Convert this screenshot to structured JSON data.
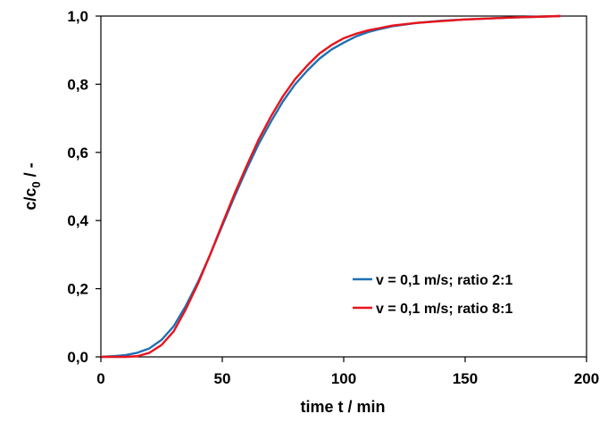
{
  "chart_data": {
    "type": "line",
    "xlabel": "time t / min",
    "ylabel": "c/c",
    "ylabel_subscript": "0",
    "ylabel_suffix": " / -",
    "xlim": [
      0,
      200
    ],
    "ylim": [
      0,
      1.0
    ],
    "x_ticks": [
      0,
      50,
      100,
      150,
      200
    ],
    "x_tick_labels": [
      "0",
      "50",
      "100",
      "150",
      "200"
    ],
    "y_ticks": [
      0,
      0.2,
      0.4,
      0.6,
      0.8,
      1.0
    ],
    "y_tick_labels": [
      "0,0",
      "0,2",
      "0,4",
      "0,6",
      "0,8",
      "1,0"
    ],
    "grid": false,
    "legend_position": "lower-right",
    "series": [
      {
        "name": "v = 0,1 m/s; ratio 2:1",
        "color": "#1f6fb5",
        "x": [
          0,
          5,
          10,
          15,
          20,
          25,
          30,
          35,
          40,
          45,
          50,
          55,
          60,
          65,
          70,
          75,
          80,
          85,
          90,
          95,
          100,
          105,
          110,
          115,
          120,
          130,
          140,
          150,
          160,
          170,
          180,
          189
        ],
        "y": [
          0.0,
          0.002,
          0.005,
          0.012,
          0.025,
          0.05,
          0.09,
          0.15,
          0.22,
          0.3,
          0.385,
          0.47,
          0.55,
          0.625,
          0.69,
          0.75,
          0.8,
          0.84,
          0.875,
          0.902,
          0.922,
          0.94,
          0.953,
          0.962,
          0.97,
          0.98,
          0.986,
          0.99,
          0.993,
          0.996,
          0.998,
          1.0
        ]
      },
      {
        "name": "v = 0,1 m/s; ratio 8:1",
        "color": "#e8141b",
        "x": [
          0,
          5,
          10,
          15,
          20,
          25,
          30,
          35,
          40,
          45,
          50,
          55,
          60,
          65,
          70,
          75,
          80,
          85,
          90,
          95,
          100,
          105,
          110,
          115,
          120,
          130,
          140,
          150,
          160,
          170,
          180,
          189
        ],
        "y": [
          0.0,
          0.0,
          0.0,
          0.002,
          0.012,
          0.035,
          0.075,
          0.14,
          0.215,
          0.3,
          0.39,
          0.478,
          0.56,
          0.638,
          0.705,
          0.765,
          0.815,
          0.855,
          0.89,
          0.915,
          0.935,
          0.948,
          0.958,
          0.965,
          0.972,
          0.98,
          0.985,
          0.99,
          0.993,
          0.996,
          0.998,
          1.0
        ]
      }
    ]
  }
}
